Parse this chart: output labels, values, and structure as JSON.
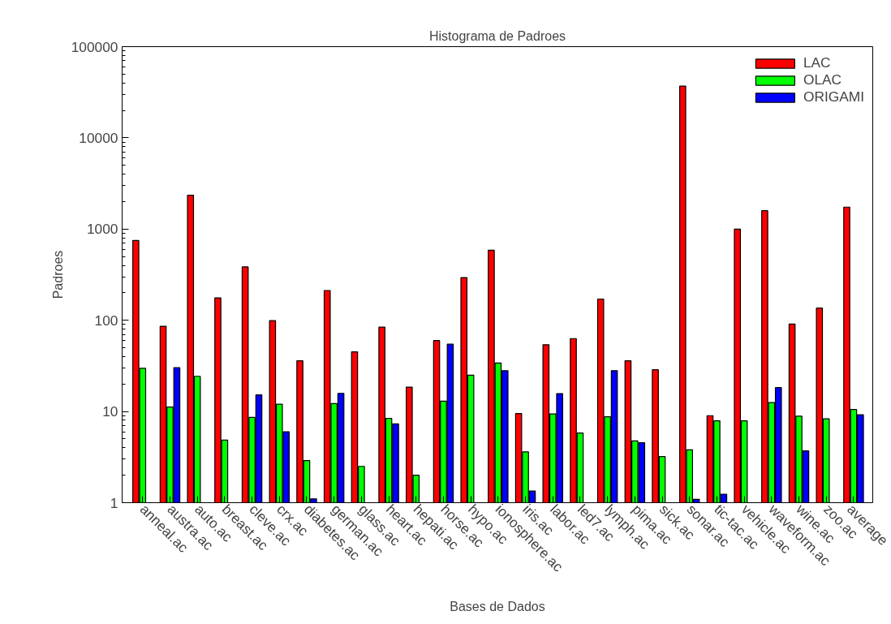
{
  "chart_data": {
    "type": "bar",
    "title": "Histograma de Padroes",
    "xlabel": "Bases de Dados",
    "ylabel": "Padroes",
    "categories": [
      "anneal.ac",
      "austra.ac",
      "auto.ac",
      "breast.ac",
      "cleve.ac",
      "crx.ac",
      "diabetes.ac",
      "german.ac",
      "glass.ac",
      "heart.ac",
      "hepati.ac",
      "horse.ac",
      "hypo.ac",
      "ionosphere.ac",
      "iris.ac",
      "labor.ac",
      "led7.ac",
      "lymph.ac",
      "pima.ac",
      "sick.ac",
      "sonar.ac",
      "tic-tac.ac",
      "vehicle.ac",
      "waveform.ac",
      "wine.ac",
      "zoo.ac",
      "average"
    ],
    "series": [
      {
        "name": "LAC",
        "color": "#ff0000",
        "values": [
          750,
          86,
          2350,
          176,
          385,
          99,
          36,
          212,
          45,
          84,
          18.5,
          60,
          294,
          585,
          9.5,
          54,
          63,
          171,
          36,
          28.7,
          37000,
          9,
          1000,
          1590,
          91,
          136,
          1740
        ]
      },
      {
        "name": "OLAC",
        "color": "#00ff00",
        "values": [
          29.7,
          11.2,
          24.3,
          4.85,
          8.6,
          12,
          2.9,
          12.2,
          2.5,
          8.4,
          2.0,
          13,
          25,
          34,
          3.6,
          9.4,
          5.8,
          8.75,
          4.75,
          3.2,
          3.8,
          7.9,
          7.9,
          12.5,
          8.9,
          8.3,
          10.5
        ]
      },
      {
        "name": "ORIGAMI",
        "color": "#0000ff",
        "values": [
          null,
          30.3,
          null,
          null,
          15.2,
          6.0,
          1.1,
          15.8,
          null,
          7.3,
          null,
          54.7,
          null,
          28,
          1.34,
          15.7,
          null,
          28,
          4.55,
          null,
          1.09,
          1.24,
          null,
          18.3,
          3.7,
          null,
          9.2
        ]
      }
    ],
    "ylim": [
      1,
      100000
    ],
    "yticks": [
      1,
      10,
      100,
      1000,
      10000,
      100000
    ],
    "log": true,
    "grid": false,
    "legend": "top right"
  }
}
